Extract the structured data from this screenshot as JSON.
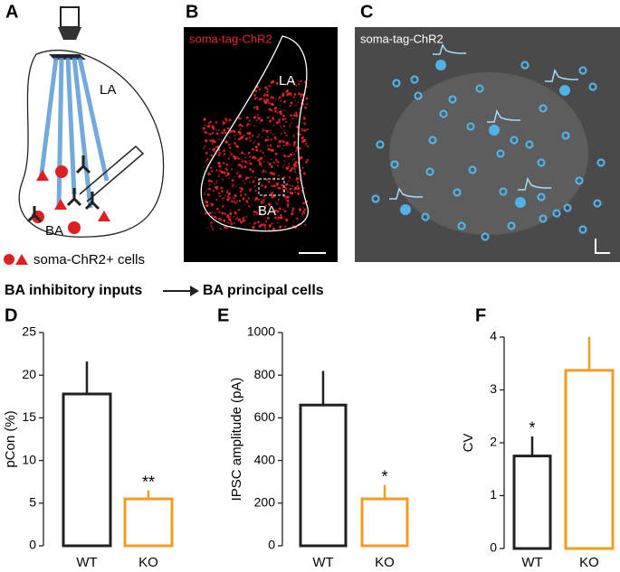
{
  "panels": {
    "a": {
      "label": "A",
      "la": "LA",
      "ba": "BA",
      "legend": "soma-ChR2+ cells"
    },
    "b": {
      "label": "B",
      "tag": "soma-tag-ChR2",
      "la": "LA",
      "ba": "BA"
    },
    "c": {
      "label": "C",
      "tag": "soma-tag-ChR2"
    }
  },
  "heading": {
    "left": "BA inhibitory inputs",
    "right": "BA principal cells"
  },
  "chart_data": [
    {
      "type": "bar",
      "panel_label": "D",
      "y_label": "pCon (%)",
      "categories": [
        "WT",
        "KO"
      ],
      "values": [
        17.8,
        5.5
      ],
      "errors": [
        3.8,
        1.0
      ],
      "colors": [
        "#231f20",
        "#f39c1f"
      ],
      "significance": [
        null,
        "**"
      ],
      "ylim": [
        0,
        25
      ],
      "yticks": [
        0,
        5,
        10,
        15,
        20,
        25
      ]
    },
    {
      "type": "bar",
      "panel_label": "E",
      "y_label": "IPSC amplitude (pA)",
      "categories": [
        "WT",
        "KO"
      ],
      "values": [
        660,
        220
      ],
      "errors": [
        160,
        65
      ],
      "colors": [
        "#231f20",
        "#f39c1f"
      ],
      "significance": [
        null,
        "*"
      ],
      "ylim": [
        0,
        1000
      ],
      "yticks": [
        0,
        200,
        400,
        600,
        800,
        1000
      ]
    },
    {
      "type": "bar",
      "panel_label": "F",
      "y_label": "CV",
      "categories": [
        "WT",
        "KO"
      ],
      "values": [
        1.75,
        3.37
      ],
      "errors": [
        0.37,
        0.63
      ],
      "colors": [
        "#231f20",
        "#f39c1f"
      ],
      "significance": [
        "*",
        null
      ],
      "ylim": [
        0,
        4
      ],
      "yticks": [
        0,
        1,
        2,
        3,
        4
      ]
    }
  ]
}
